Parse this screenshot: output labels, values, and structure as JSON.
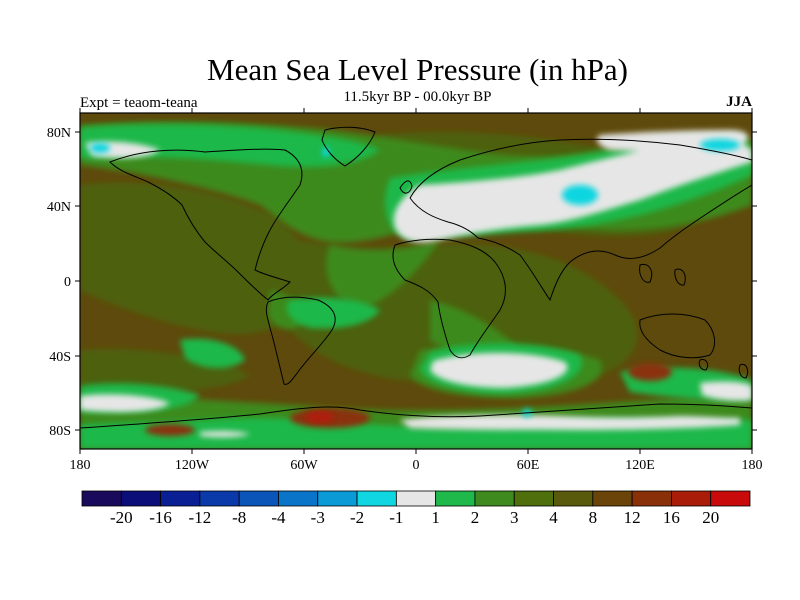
{
  "title": "Mean Sea Level Pressure (in hPa)",
  "subtitle": "11.5kyr BP - 00.0kyr BP",
  "left_label": "Expt = teaom-teana",
  "right_label": "JJA",
  "map": {
    "lon_ticks": [
      "180",
      "120W",
      "60W",
      "0",
      "60E",
      "120E",
      "180"
    ],
    "lat_ticks": [
      "80N",
      "40N",
      "0",
      "40S",
      "80S"
    ]
  },
  "colorbar": {
    "colors": [
      "#1a0a5c",
      "#0b0d78",
      "#0a1f94",
      "#0a3aaa",
      "#0b55b8",
      "#0a74c8",
      "#0a9ad6",
      "#0fd6e0",
      "#e6e6e6",
      "#1fb84a",
      "#3e8a1e",
      "#4e6f0c",
      "#5a5a0c",
      "#6a4408",
      "#8a3008",
      "#a81c08",
      "#c80a0a"
    ],
    "labels": [
      "-20",
      "-16",
      "-12",
      "-8",
      "-4",
      "-3",
      "-2",
      "-1",
      "1",
      "2",
      "3",
      "4",
      "8",
      "12",
      "16",
      "20"
    ]
  },
  "colors": {
    "base": "#5e4a0c",
    "olive": "#4e6010",
    "green": "#3e8a1e",
    "light_green": "#1fb84a",
    "white": "#e6e6e6",
    "cyan": "#0fd6e0",
    "red": "#9a2408"
  }
}
